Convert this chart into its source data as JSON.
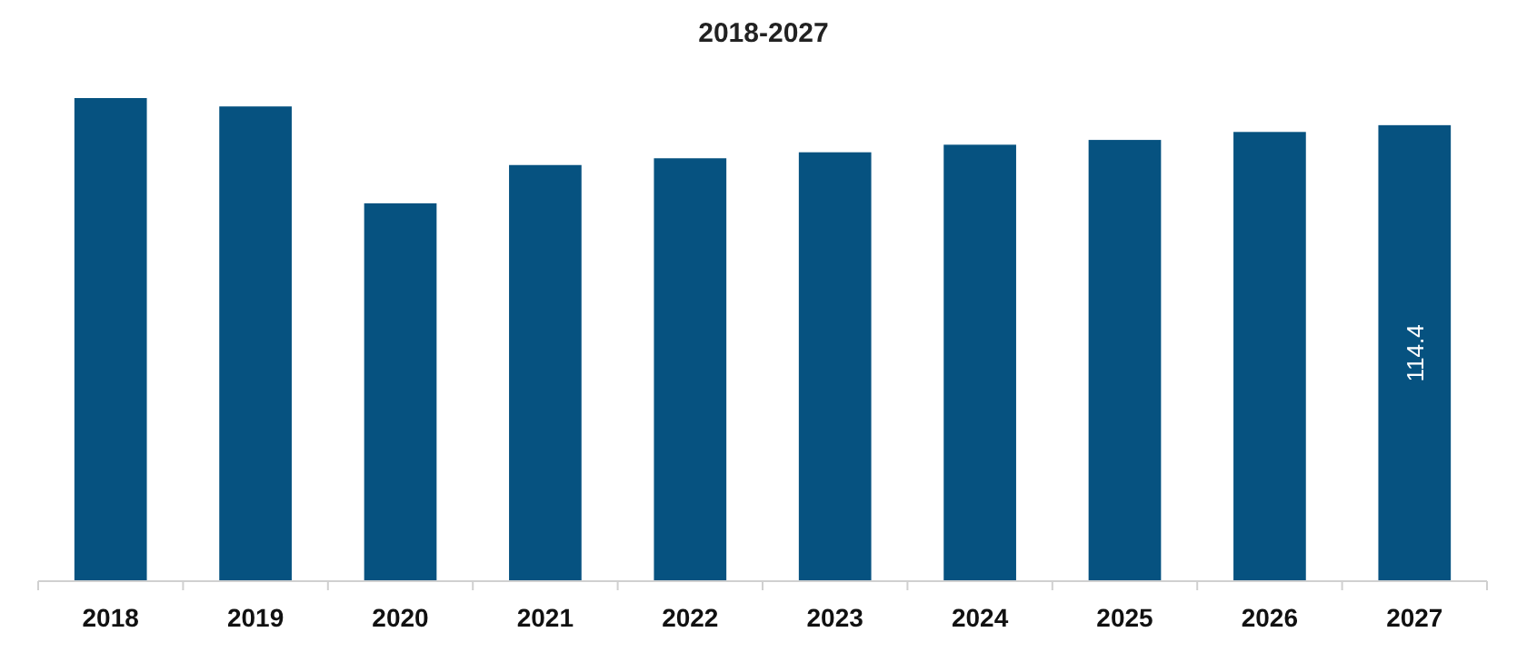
{
  "chart_data": {
    "type": "bar",
    "title": "2018-2027",
    "categories": [
      "2018",
      "2019",
      "2020",
      "2021",
      "2022",
      "2023",
      "2024",
      "2025",
      "2026",
      "2027"
    ],
    "values": [
      121.2,
      119.1,
      94.8,
      104.4,
      106.1,
      107.6,
      109.5,
      110.7,
      112.7,
      114.4
    ],
    "value_labels": [
      null,
      null,
      null,
      null,
      null,
      null,
      null,
      null,
      null,
      "114.4"
    ],
    "color": "#065280",
    "ylim": [
      0,
      121.2
    ],
    "tick_labels": "x"
  }
}
